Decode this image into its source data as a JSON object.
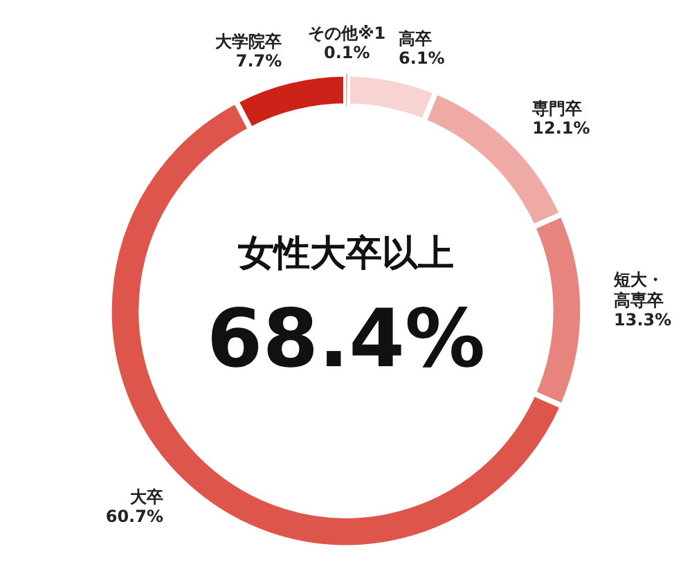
{
  "chart_data": {
    "type": "donut",
    "title": "女性大卒以上",
    "annotations": [
      "68.4%"
    ],
    "categories": [
      "その他※1",
      "高卒",
      "専門卒",
      "短大・高専卒",
      "大卒",
      "大学院卒"
    ],
    "values": [
      0.1,
      6.1,
      12.1,
      13.3,
      60.7,
      7.7
    ],
    "value_labels": [
      "0.1%",
      "6.1%",
      "12.1%",
      "13.3%",
      "60.7%",
      "7.7%"
    ],
    "colors": [
      "#d42a22",
      "#f7d4d2",
      "#efaaa6",
      "#e8847e",
      "#de554c",
      "#cc2218"
    ],
    "legend": false
  }
}
